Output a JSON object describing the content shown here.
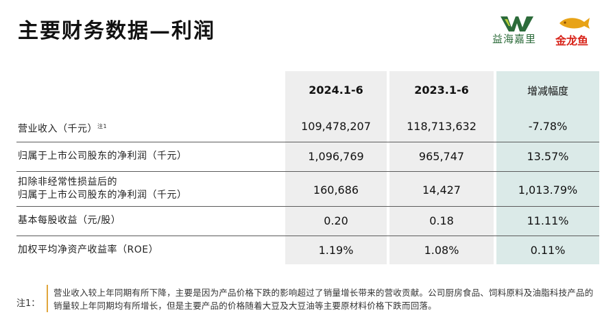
{
  "title": "主要财务数据—利润",
  "logos": {
    "yihai": "益海嘉里",
    "jinlongyu": "金龙鱼",
    "brand_green": "#2c6b3a",
    "brand_red": "#d8241a",
    "brand_gold": "#e8a317"
  },
  "table": {
    "headers": [
      "2024.1-6",
      "2023.1-6",
      "增减幅度"
    ],
    "rows": [
      {
        "label": "营业收入（千元）",
        "sup": "注1",
        "v2024": "109,478,207",
        "v2023": "118,713,632",
        "change": "-7.78%"
      },
      {
        "label": "归属于上市公司股东的净利润（千元）",
        "v2024": "1,096,769",
        "v2023": "965,747",
        "change": "13.57%"
      },
      {
        "label_line1": "扣除非经常性损益后的",
        "label_line2": "归属于上市公司股东的净利润（千元）",
        "v2024": "160,686",
        "v2023": "14,427",
        "change": "1,013.79%"
      },
      {
        "label": "基本每股收益（元/股）",
        "v2024": "0.20",
        "v2023": "0.18",
        "change": "11.11%"
      },
      {
        "label": "加权平均净资产收益率（ROE）",
        "v2024": "1.19%",
        "v2023": "1.08%",
        "change": "0.11%"
      }
    ]
  },
  "note": {
    "label": "注1：",
    "text": "营业收入较上年同期有所下降，主要是因为产品价格下跌的影响超过了销量增长带来的营收贡献。公司厨房食品、饲料原料及油脂科技产品的销量较上年同期均有所增长，但是主要产品的价格随着大豆及大豆油等主要原材料价格下跌而回落。"
  }
}
